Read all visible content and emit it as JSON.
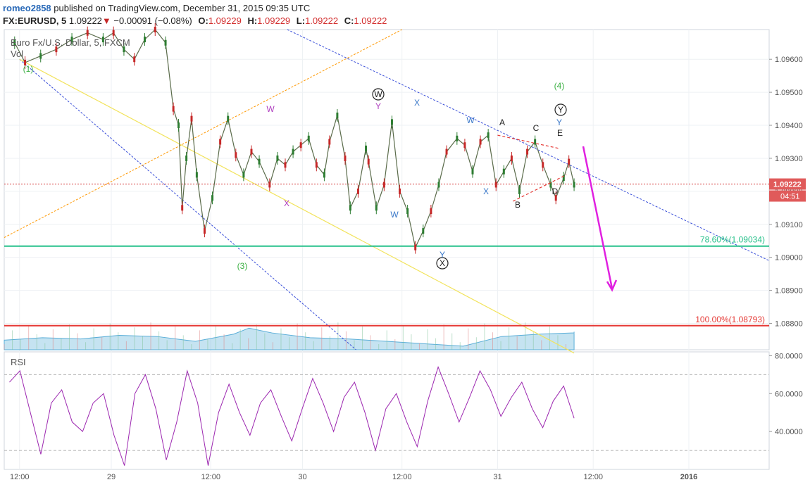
{
  "header": {
    "username": "romeo2858",
    "published_text": "published on TradingView.com, December 31, 2015 09:35 UTC",
    "symbol": "FX:EURUSD, 5",
    "last": "1.09222",
    "change_arrow": "▼",
    "change": "−0.00091 (−0.08%)",
    "o_label": "O:",
    "o_value": "1.09229",
    "h_label": "H:",
    "h_value": "1.09229",
    "l_label": "L:",
    "l_value": "1.09222",
    "c_label": "C:",
    "c_value": "1.09222"
  },
  "chart_data": {
    "type": "line",
    "title": "Euro Fx/U.S. Dollar, 5, FXCM",
    "volume_label": "Vol",
    "rsi_label": "RSI",
    "price_axis_ticks": [
      "1.09600",
      "1.09500",
      "1.09400",
      "1.09300",
      "1.09200",
      "1.09100",
      "1.09000",
      "1.08900",
      "1.08800"
    ],
    "rsi_axis_ticks": [
      "80.0000",
      "60.0000",
      "40.0000"
    ],
    "time_axis_ticks": [
      "12:00",
      "29",
      "12:00",
      "30",
      "12:00",
      "31",
      "12:00",
      "2016"
    ],
    "current_price_tag": "1.09222",
    "countdown_tag": "04:51",
    "y_range": [
      1.0872,
      1.0969
    ],
    "rsi_range": [
      20,
      82
    ],
    "colors": {
      "candle_up": "#2e7d32",
      "candle_down": "#c62828",
      "volume": "#5aaed8",
      "rsi_line": "#9c27b0",
      "fib_78": "#26c08a",
      "fib_100": "#e53935",
      "trend_blue": "#3a4fd9",
      "trend_orange": "#ff9800",
      "trend_yellow": "#f2e35c",
      "arrow": "#e020e0",
      "triangle": "#e53935"
    },
    "price_path": [
      [
        0.02,
        1.0965
      ],
      [
        0.04,
        1.0959
      ],
      [
        0.07,
        1.0961
      ],
      [
        0.1,
        1.0963
      ],
      [
        0.13,
        1.0966
      ],
      [
        0.16,
        1.0968
      ],
      [
        0.19,
        1.0966
      ],
      [
        0.21,
        1.0968
      ],
      [
        0.23,
        1.0963
      ],
      [
        0.25,
        1.096
      ],
      [
        0.27,
        1.0966
      ],
      [
        0.29,
        1.0969
      ],
      [
        0.31,
        1.0965
      ],
      [
        0.325,
        1.0945
      ],
      [
        0.335,
        1.094
      ],
      [
        0.342,
        1.0915
      ],
      [
        0.35,
        1.093
      ],
      [
        0.36,
        1.0942
      ],
      [
        0.37,
        1.0925
      ],
      [
        0.385,
        1.0908
      ],
      [
        0.4,
        1.0918
      ],
      [
        0.415,
        1.0935
      ],
      [
        0.43,
        1.0942
      ],
      [
        0.445,
        1.0931
      ],
      [
        0.46,
        1.0925
      ],
      [
        0.475,
        1.0932
      ],
      [
        0.49,
        1.0929
      ],
      [
        0.51,
        1.0922
      ],
      [
        0.525,
        1.093
      ],
      [
        0.54,
        1.0928
      ],
      [
        0.555,
        1.0932
      ],
      [
        0.57,
        1.0934
      ],
      [
        0.585,
        1.0936
      ],
      [
        0.6,
        1.0928
      ],
      [
        0.615,
        1.0925
      ],
      [
        0.625,
        1.0935
      ],
      [
        0.64,
        1.0943
      ],
      [
        0.655,
        1.093
      ],
      [
        0.665,
        1.0915
      ],
      [
        0.68,
        1.092
      ],
      [
        0.695,
        1.0933
      ],
      [
        0.7,
        1.0929
      ],
      [
        0.715,
        1.0915
      ],
      [
        0.73,
        1.0922
      ],
      [
        0.745,
        1.0941
      ],
      [
        0.76,
        1.092
      ],
      [
        0.775,
        1.0914
      ],
      [
        0.79,
        1.0903
      ],
      [
        0.805,
        1.0908
      ],
      [
        0.82,
        1.0914
      ],
      [
        0.835,
        1.0922
      ],
      [
        0.85,
        1.0932
      ],
      [
        0.87,
        1.0936
      ],
      [
        0.885,
        1.0934
      ],
      [
        0.9,
        1.0926
      ],
      [
        0.915,
        1.0935
      ],
      [
        0.93,
        1.0937
      ],
      [
        0.945,
        1.0922
      ],
      [
        0.96,
        1.0926
      ],
      [
        0.975,
        1.093
      ],
      [
        0.99,
        1.092
      ],
      [
        1.005,
        1.0932
      ],
      [
        1.02,
        1.0935
      ],
      [
        1.035,
        1.0928
      ],
      [
        1.05,
        1.0922
      ],
      [
        1.06,
        1.0918
      ],
      [
        1.075,
        1.0924
      ],
      [
        1.085,
        1.0929
      ],
      [
        1.095,
        1.0922
      ]
    ],
    "rsi_path": [
      [
        0.01,
        66
      ],
      [
        0.03,
        72
      ],
      [
        0.05,
        50
      ],
      [
        0.07,
        28
      ],
      [
        0.09,
        55
      ],
      [
        0.11,
        62
      ],
      [
        0.13,
        45
      ],
      [
        0.15,
        40
      ],
      [
        0.17,
        55
      ],
      [
        0.19,
        60
      ],
      [
        0.21,
        38
      ],
      [
        0.23,
        22
      ],
      [
        0.25,
        60
      ],
      [
        0.27,
        70
      ],
      [
        0.29,
        52
      ],
      [
        0.31,
        25
      ],
      [
        0.33,
        45
      ],
      [
        0.35,
        72
      ],
      [
        0.37,
        55
      ],
      [
        0.39,
        22
      ],
      [
        0.41,
        50
      ],
      [
        0.43,
        65
      ],
      [
        0.45,
        50
      ],
      [
        0.47,
        38
      ],
      [
        0.49,
        55
      ],
      [
        0.51,
        62
      ],
      [
        0.53,
        48
      ],
      [
        0.55,
        35
      ],
      [
        0.57,
        52
      ],
      [
        0.59,
        68
      ],
      [
        0.61,
        55
      ],
      [
        0.63,
        40
      ],
      [
        0.65,
        58
      ],
      [
        0.67,
        66
      ],
      [
        0.69,
        50
      ],
      [
        0.71,
        30
      ],
      [
        0.73,
        52
      ],
      [
        0.75,
        60
      ],
      [
        0.77,
        45
      ],
      [
        0.79,
        32
      ],
      [
        0.81,
        56
      ],
      [
        0.83,
        74
      ],
      [
        0.85,
        60
      ],
      [
        0.87,
        45
      ],
      [
        0.89,
        58
      ],
      [
        0.91,
        72
      ],
      [
        0.93,
        62
      ],
      [
        0.95,
        48
      ],
      [
        0.97,
        58
      ],
      [
        0.99,
        66
      ],
      [
        1.01,
        52
      ],
      [
        1.03,
        42
      ],
      [
        1.05,
        56
      ],
      [
        1.07,
        64
      ],
      [
        1.09,
        47
      ]
    ],
    "volume_path": [
      [
        0,
        0.4
      ],
      [
        0.05,
        0.5
      ],
      [
        0.1,
        0.45
      ],
      [
        0.15,
        0.6
      ],
      [
        0.2,
        0.55
      ],
      [
        0.25,
        0.35
      ],
      [
        0.3,
        0.65
      ],
      [
        0.32,
        0.9
      ],
      [
        0.35,
        0.7
      ],
      [
        0.4,
        0.5
      ],
      [
        0.45,
        0.45
      ],
      [
        0.5,
        0.35
      ],
      [
        0.55,
        0.25
      ],
      [
        0.6,
        0.15
      ],
      [
        0.65,
        0.55
      ],
      [
        0.7,
        0.65
      ],
      [
        0.75,
        0.7
      ],
      [
        0.8,
        0.75
      ],
      [
        0.85,
        0.55
      ],
      [
        0.9,
        0.4
      ],
      [
        0.95,
        0.35
      ],
      [
        1.0,
        0.25
      ],
      [
        1.05,
        0.3
      ],
      [
        1.1,
        0.45
      ]
    ],
    "annotations": [
      {
        "text": "(1)",
        "color": "#3cb043",
        "circle": false
      },
      {
        "text": "(3)",
        "color": "#3cb043",
        "circle": false
      },
      {
        "text": "(4)",
        "color": "#3cb043",
        "circle": false
      },
      {
        "text": "W",
        "color": "#222222",
        "circle": true
      },
      {
        "text": "X",
        "color": "#222222",
        "circle": true
      },
      {
        "text": "Y",
        "color": "#222222",
        "circle": true
      },
      {
        "text": "W",
        "color": "#b040c0",
        "circle": false
      },
      {
        "text": "X",
        "color": "#b040c0",
        "circle": false
      },
      {
        "text": "Y",
        "color": "#b040c0",
        "circle": false
      },
      {
        "text": "W",
        "color": "#3a78c9",
        "circle": false
      },
      {
        "text": "X",
        "color": "#3a78c9",
        "circle": false
      },
      {
        "text": "Y",
        "color": "#3a78c9",
        "circle": false
      },
      {
        "text": "W",
        "color": "#3a78c9",
        "circle": false
      },
      {
        "text": "X",
        "color": "#3a78c9",
        "circle": false
      },
      {
        "text": "Y",
        "color": "#3a78c9",
        "circle": false
      },
      {
        "text": "A",
        "color": "#222222",
        "circle": false
      },
      {
        "text": "B",
        "color": "#222222",
        "circle": false
      },
      {
        "text": "C",
        "color": "#222222",
        "circle": false
      },
      {
        "text": "D",
        "color": "#222222",
        "circle": false
      },
      {
        "text": "E",
        "color": "#222222",
        "circle": false
      }
    ],
    "fib_levels": [
      {
        "label": "78.60%(1.09034)",
        "price": 1.09034,
        "color": "#26c08a"
      },
      {
        "label": "100.00%(1.08793)",
        "price": 1.08793,
        "color": "#e53935"
      }
    ]
  }
}
